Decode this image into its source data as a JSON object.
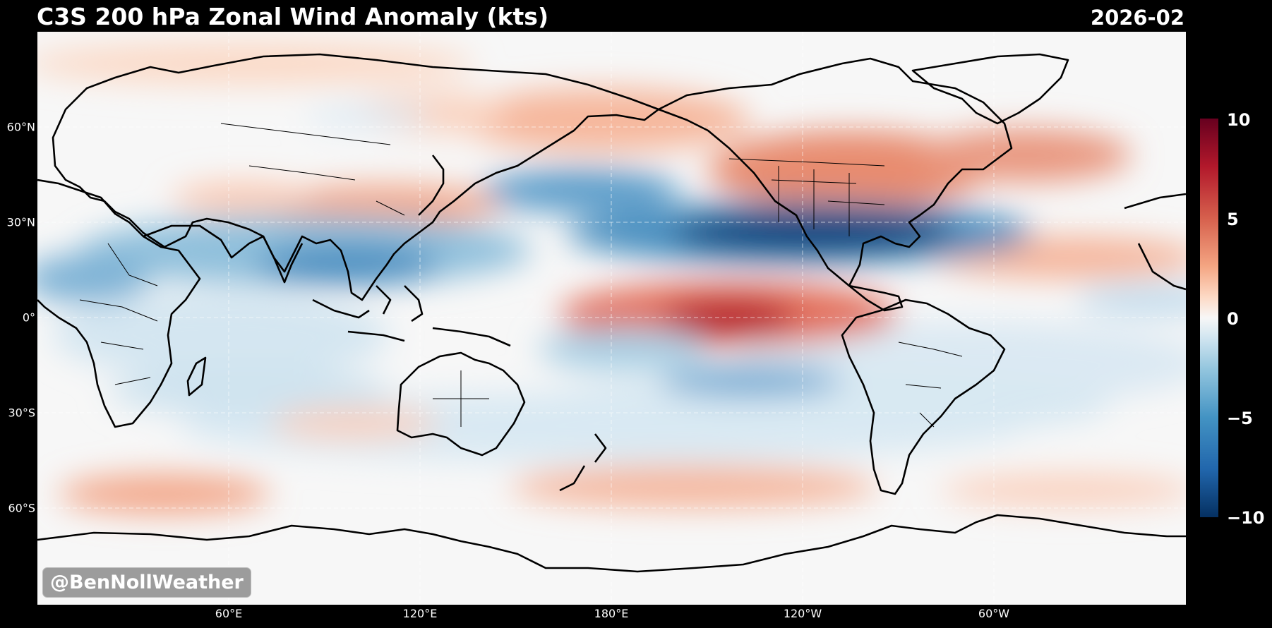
{
  "title": "C3S 200 hPa Zonal Wind Anomaly (kts)",
  "date": "2026-02",
  "watermark": "@BenNollWeather",
  "lat_labels": [
    "60°N",
    "30°N",
    "0°",
    "30°S",
    "60°S"
  ],
  "lon_labels": [
    "60°E",
    "120°E",
    "180°E",
    "120°W",
    "60°W"
  ],
  "colorbar_ticks": [
    "10",
    "5",
    "0",
    "−5",
    "−10"
  ],
  "colormap": [
    "#67001f",
    "#b2182b",
    "#d6604d",
    "#f4a582",
    "#fddbc7",
    "#f7f7f7",
    "#d1e5f0",
    "#92c5de",
    "#4393c3",
    "#2166ac",
    "#053061"
  ]
}
